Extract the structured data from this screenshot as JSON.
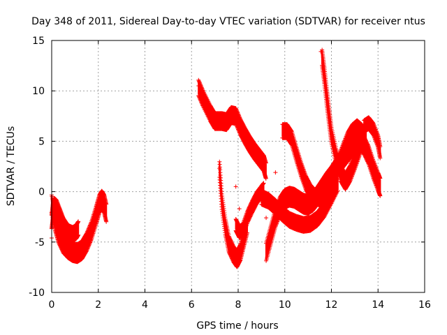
{
  "chart_data": {
    "type": "scatter",
    "title": "Day 348 of 2011, Sidereal Day-to-day VTEC variation (SDTVAR) for receiver ntus",
    "xlabel": "GPS time / hours",
    "ylabel": "SDTVAR / TECUs",
    "xlim": [
      0,
      16
    ],
    "ylim": [
      -10,
      15
    ],
    "xticks": [
      "0",
      "2",
      "4",
      "6",
      "8",
      "10",
      "12",
      "14",
      "16"
    ],
    "yticks": [
      "-10",
      "-5",
      "0",
      "5",
      "10",
      "15"
    ],
    "grid": true,
    "marker": "+",
    "color": "#ff0000",
    "series": [
      {
        "traces": [
          {
            "x": [
              0.0,
              0.15,
              0.3,
              0.5,
              0.7,
              0.9,
              1.1,
              1.3,
              1.5,
              1.7,
              1.9,
              2.05,
              2.15,
              2.25,
              2.35
            ],
            "y": [
              -1.2,
              -3.0,
              -4.2,
              -5.2,
              -5.7,
              -6.0,
              -6.1,
              -5.8,
              -5.0,
              -3.9,
              -2.4,
              -1.2,
              -0.8,
              -1.2,
              -2.2
            ],
            "width": 1.6
          },
          {
            "x": [
              0.0,
              0.05,
              0.1,
              0.2,
              0.35,
              0.5,
              0.7,
              0.9,
              1.05,
              1.15
            ],
            "y": [
              -3.0,
              -2.0,
              -1.3,
              -1.5,
              -2.4,
              -3.3,
              -4.0,
              -4.2,
              -4.0,
              -3.6
            ],
            "width": 1.2
          },
          {
            "x": [
              6.3,
              6.5,
              6.8,
              7.0,
              7.3,
              7.5,
              7.7,
              7.9,
              8.1,
              8.3,
              8.5,
              8.7,
              8.9,
              9.1,
              9.2
            ],
            "y": [
              10.3,
              9.2,
              7.8,
              7.0,
              7.0,
              6.9,
              7.6,
              7.5,
              6.4,
              5.5,
              4.7,
              4.0,
              3.4,
              2.8,
              2.0
            ],
            "width": 1.4
          },
          {
            "x": [
              7.2,
              7.3,
              7.45,
              7.6,
              7.8,
              7.95,
              8.1,
              8.25,
              8.4
            ],
            "y": [
              2.2,
              -1.0,
              -3.5,
              -5.2,
              -6.2,
              -6.7,
              -6.0,
              -4.6,
              -3.2
            ],
            "width": 1.4
          },
          {
            "x": [
              7.9,
              8.05,
              8.2,
              8.4,
              8.6,
              8.8,
              9.0,
              9.1
            ],
            "y": [
              -3.3,
              -4.0,
              -3.8,
              -2.5,
              -1.5,
              -0.6,
              0.0,
              0.3
            ],
            "width": 1.0
          },
          {
            "x": [
              9.2,
              9.4,
              9.6,
              9.8,
              10.0,
              10.2,
              10.4,
              10.6,
              10.8,
              11.0,
              11.2,
              11.4,
              11.6,
              11.8,
              12.0,
              12.2,
              12.4,
              12.6,
              12.8,
              13.0,
              13.2,
              13.4,
              13.6,
              13.8,
              14.0,
              14.1
            ],
            "y": [
              -6.0,
              -4.3,
              -2.6,
              -1.4,
              -0.7,
              -0.5,
              -0.6,
              -0.9,
              -1.2,
              -1.3,
              -1.0,
              -0.4,
              0.3,
              1.0,
              1.6,
              2.3,
              3.0,
              3.6,
              4.2,
              4.7,
              5.0,
              4.6,
              3.6,
              2.2,
              1.0,
              0.4
            ],
            "width": 1.6
          },
          {
            "x": [
              9.9,
              10.1,
              10.3,
              10.5,
              10.7,
              10.9,
              11.1,
              11.3,
              11.5
            ],
            "y": [
              6.0,
              6.0,
              5.3,
              3.7,
              2.2,
              0.9,
              0.0,
              -0.5,
              -0.7
            ],
            "width": 1.2
          },
          {
            "x": [
              11.6,
              11.7,
              11.8,
              11.9,
              12.0,
              12.2,
              12.4,
              12.6,
              12.8,
              13.0,
              13.2,
              13.4
            ],
            "y": [
              13.3,
              11.5,
              9.4,
              7.5,
              5.6,
              3.5,
              1.8,
              1.0,
              1.8,
              3.0,
              4.3,
              5.8
            ],
            "width": 1.4
          },
          {
            "x": [
              11.5,
              11.7,
              11.9,
              12.1,
              12.3,
              12.5,
              12.7,
              12.9,
              13.1,
              13.3,
              13.5
            ],
            "y": [
              -1.3,
              -0.5,
              0.5,
              1.6,
              2.8,
              4.0,
              5.2,
              6.0,
              6.4,
              6.0,
              5.3
            ],
            "width": 1.2
          },
          {
            "x": [
              13.4,
              13.6,
              13.8,
              14.0,
              14.1
            ],
            "y": [
              6.5,
              6.8,
              6.2,
              5.0,
              3.8
            ],
            "width": 1.0
          },
          {
            "x": [
              9.0,
              9.3,
              9.6,
              9.9,
              10.2,
              10.5,
              10.8,
              11.1,
              11.4,
              11.7,
              12.0,
              12.3
            ],
            "y": [
              -0.6,
              -0.9,
              -1.5,
              -2.2,
              -2.8,
              -3.1,
              -3.3,
              -3.2,
              -2.7,
              -1.8,
              -0.5,
              0.9
            ],
            "width": 1.2
          }
        ],
        "points": [
          {
            "x": 7.2,
            "y": 2.3
          },
          {
            "x": 7.9,
            "y": 0.5
          },
          {
            "x": 9.6,
            "y": 1.9
          },
          {
            "x": 9.2,
            "y": -1.3
          },
          {
            "x": 9.2,
            "y": -2.6
          },
          {
            "x": 8.05,
            "y": -1.7
          },
          {
            "x": 11.55,
            "y": 13.9
          },
          {
            "x": 6.3,
            "y": 10.5
          },
          {
            "x": 0.0,
            "y": -4.6
          }
        ]
      }
    ]
  }
}
